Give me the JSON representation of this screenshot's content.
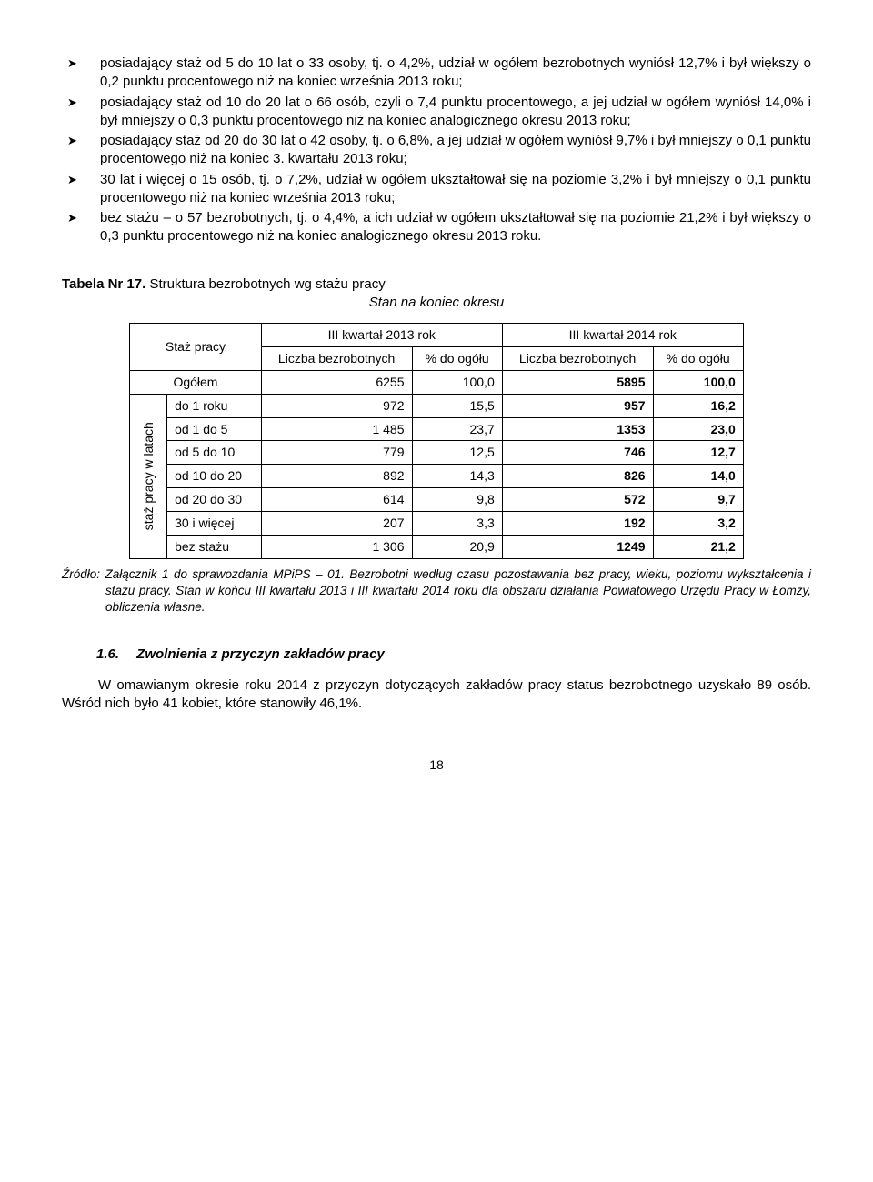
{
  "bullets": [
    "posiadający staż od 5 do 10 lat o 33 osoby, tj. o 4,2%, udział w ogółem bezrobotnych wyniósł 12,7% i był większy o 0,2 punktu procentowego niż na koniec września 2013 roku;",
    "posiadający staż od 10 do 20 lat o 66 osób, czyli o 7,4 punktu procentowego, a jej udział w ogółem wyniósł 14,0% i był mniejszy o 0,3 punktu procentowego niż na koniec analogicznego okresu 2013 roku;",
    "posiadający staż od 20 do 30 lat o 42 osoby, tj. o 6,8%, a jej udział w ogółem wyniósł 9,7% i był mniejszy o 0,1 punktu procentowego niż na koniec  3. kwartału 2013 roku;",
    "30 lat i więcej o 15 osób, tj. o 7,2%, udział w ogółem ukształtował się na poziomie 3,2% i był mniejszy o 0,1 punktu procentowego niż na koniec września 2013 roku;",
    "bez stażu – o 57 bezrobotnych, tj. o 4,4%, a ich udział w ogółem ukształtował się na poziomie 21,2% i był większy o 0,3 punktu procentowego niż na koniec analogicznego okresu 2013 roku."
  ],
  "table_label": "Tabela Nr 17.",
  "table_caption": "Struktura bezrobotnych wg stażu pracy",
  "table_subtitle": "Stan na koniec okresu",
  "table": {
    "col_group_label": "Staż pracy",
    "period1": "III kwartał 2013 rok",
    "period2": "III kwartał 2014 rok",
    "col_liczba": "Liczba bezrobotnych",
    "col_pct": "% do ogółu",
    "rotate_label": "staż pracy w latach",
    "rows": [
      {
        "label": "Ogółem",
        "a": "6255",
        "b": "100,0",
        "c": "5895",
        "d": "100,0"
      },
      {
        "label": "do 1 roku",
        "a": "972",
        "b": "15,5",
        "c": "957",
        "d": "16,2"
      },
      {
        "label": "od 1 do 5",
        "a": "1 485",
        "b": "23,7",
        "c": "1353",
        "d": "23,0"
      },
      {
        "label": "od 5 do 10",
        "a": "779",
        "b": "12,5",
        "c": "746",
        "d": "12,7"
      },
      {
        "label": "od 10 do 20",
        "a": "892",
        "b": "14,3",
        "c": "826",
        "d": "14,0"
      },
      {
        "label": "od 20 do 30",
        "a": "614",
        "b": "9,8",
        "c": "572",
        "d": "9,7"
      },
      {
        "label": "30 i więcej",
        "a": "207",
        "b": "3,3",
        "c": "192",
        "d": "3,2"
      },
      {
        "label": "bez stażu",
        "a": "1 306",
        "b": "20,9",
        "c": "1249",
        "d": "21,2"
      }
    ]
  },
  "source": "Źródło: Załącznik 1 do sprawozdania MPiPS – 01. Bezrobotni według czasu pozostawania bez pracy, wieku, poziomu wykształcenia i stażu pracy. Stan w końcu III kwartału 2013 i III kwartału 2014 roku dla obszaru działania Powiatowego Urzędu Pracy w Łomży, obliczenia własne.",
  "section": {
    "num": "1.6.",
    "title": "Zwolnienia z przyczyn zakładów pracy"
  },
  "para1": "W omawianym okresie roku 2014 z przyczyn dotyczących zakładów pracy status bezrobotnego uzyskało 89 osób. Wśród nich było 41 kobiet, które stanowiły 46,1%.",
  "page_number": "18"
}
